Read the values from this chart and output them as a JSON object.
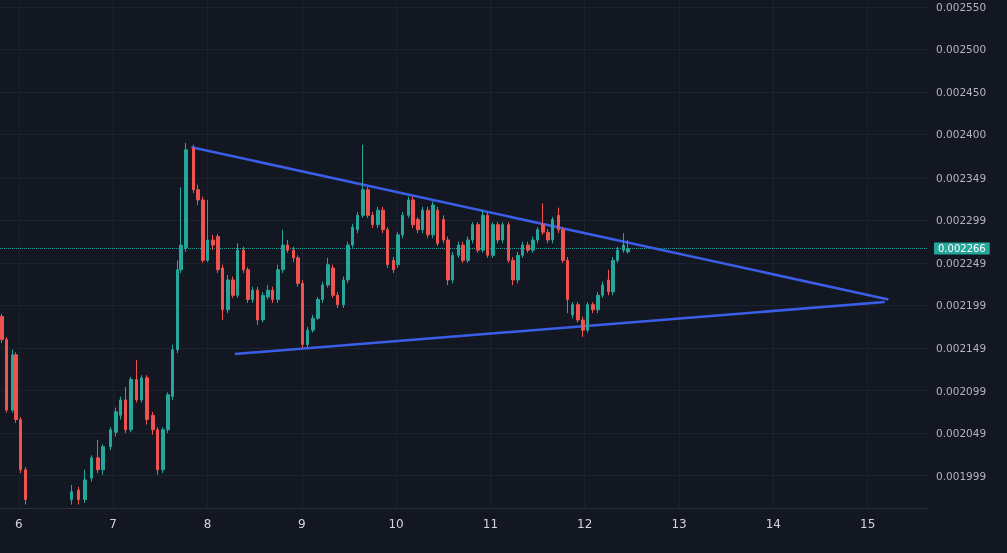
{
  "chart_data": {
    "type": "candlestick",
    "x": [
      5.82,
      5.87,
      5.93,
      5.97,
      6.02,
      6.07,
      6.56,
      6.63,
      6.7,
      6.77,
      6.84,
      6.89,
      6.97,
      7.03,
      7.08,
      7.13,
      7.19,
      7.25,
      7.3,
      7.36,
      7.42,
      7.47,
      7.53,
      7.58,
      7.63,
      7.68,
      7.72,
      7.77,
      7.85,
      7.9,
      7.95,
      8.0,
      8.06,
      8.11,
      8.16,
      8.22,
      8.27,
      8.32,
      8.38,
      8.43,
      8.48,
      8.53,
      8.59,
      8.64,
      8.69,
      8.75,
      8.8,
      8.85,
      8.91,
      8.96,
      9.01,
      9.06,
      9.12,
      9.17,
      9.22,
      9.28,
      9.33,
      9.38,
      9.44,
      9.49,
      9.54,
      9.59,
      9.65,
      9.7,
      9.75,
      9.81,
      9.86,
      9.91,
      9.97,
      10.02,
      10.07,
      10.13,
      10.18,
      10.23,
      10.28,
      10.34,
      10.39,
      10.44,
      10.5,
      10.55,
      10.6,
      10.66,
      10.71,
      10.76,
      10.81,
      10.87,
      10.92,
      10.97,
      11.03,
      11.08,
      11.13,
      11.19,
      11.24,
      11.29,
      11.34,
      11.4,
      11.45,
      11.5,
      11.56,
      11.61,
      11.66,
      11.72,
      11.77,
      11.82,
      11.87,
      11.93,
      11.98,
      12.03,
      12.09,
      12.14,
      12.19,
      12.25,
      12.3,
      12.35,
      12.41,
      12.46
    ],
    "ohlc": [
      [
        0.002186,
        0.002189,
        0.002155,
        0.002159
      ],
      [
        0.002159,
        0.002162,
        0.002073,
        0.002076
      ],
      [
        0.002076,
        0.002147,
        0.002073,
        0.002141
      ],
      [
        0.002141,
        0.002144,
        0.002061,
        0.002065
      ],
      [
        0.002065,
        0.002068,
        0.002002,
        0.002006
      ],
      [
        0.002006,
        0.002009,
        0.001965,
        0.001971
      ],
      [
        0.001971,
        0.001988,
        0.001965,
        0.00198
      ],
      [
        0.001982,
        0.001986,
        0.001965,
        0.001971
      ],
      [
        0.001971,
        0.002006,
        0.001967,
        0.001994
      ],
      [
        0.001996,
        0.002023,
        0.001992,
        0.00202
      ],
      [
        0.00202,
        0.002041,
        0.002002,
        0.002006
      ],
      [
        0.002006,
        0.002036,
        0.002,
        0.002033
      ],
      [
        0.002033,
        0.002056,
        0.002029,
        0.002053
      ],
      [
        0.00205,
        0.002079,
        0.002045,
        0.002074
      ],
      [
        0.00207,
        0.002092,
        0.002065,
        0.002088
      ],
      [
        0.002088,
        0.002103,
        0.002049,
        0.002053
      ],
      [
        0.002053,
        0.002115,
        0.00205,
        0.002112
      ],
      [
        0.002112,
        0.002135,
        0.002085,
        0.002088
      ],
      [
        0.002088,
        0.002117,
        0.002085,
        0.002114
      ],
      [
        0.002114,
        0.002117,
        0.002059,
        0.002065
      ],
      [
        0.00207,
        0.002074,
        0.002047,
        0.002053
      ],
      [
        0.002053,
        0.002056,
        0.002,
        0.002006
      ],
      [
        0.002006,
        0.002056,
        0.002002,
        0.002053
      ],
      [
        0.002053,
        0.002097,
        0.002049,
        0.002094
      ],
      [
        0.002092,
        0.002153,
        0.002088,
        0.002147
      ],
      [
        0.002147,
        0.002252,
        0.002143,
        0.002241
      ],
      [
        0.002241,
        0.002338,
        0.002237,
        0.00227
      ],
      [
        0.002267,
        0.00239,
        0.002262,
        0.002382
      ],
      [
        0.002384,
        0.002388,
        0.002331,
        0.002335
      ],
      [
        0.002335,
        0.002341,
        0.002317,
        0.002323
      ],
      [
        0.002323,
        0.002327,
        0.002249,
        0.002252
      ],
      [
        0.002252,
        0.002323,
        0.00225,
        0.002276
      ],
      [
        0.002276,
        0.002282,
        0.002264,
        0.00227
      ],
      [
        0.00228,
        0.002283,
        0.002237,
        0.002241
      ],
      [
        0.002243,
        0.002247,
        0.002182,
        0.002194
      ],
      [
        0.002194,
        0.002235,
        0.00219,
        0.002229
      ],
      [
        0.002229,
        0.002233,
        0.002208,
        0.002211
      ],
      [
        0.002211,
        0.002272,
        0.002208,
        0.002264
      ],
      [
        0.002264,
        0.002268,
        0.002237,
        0.002241
      ],
      [
        0.002241,
        0.002244,
        0.002202,
        0.002206
      ],
      [
        0.002206,
        0.002221,
        0.002202,
        0.002217
      ],
      [
        0.002217,
        0.002221,
        0.002176,
        0.002182
      ],
      [
        0.002182,
        0.002215,
        0.002179,
        0.002211
      ],
      [
        0.002209,
        0.002223,
        0.002206,
        0.002217
      ],
      [
        0.002217,
        0.002221,
        0.002202,
        0.002206
      ],
      [
        0.002206,
        0.002247,
        0.002202,
        0.002241
      ],
      [
        0.002241,
        0.002288,
        0.002237,
        0.00227
      ],
      [
        0.00227,
        0.002276,
        0.002261,
        0.002264
      ],
      [
        0.002264,
        0.002268,
        0.00225,
        0.002255
      ],
      [
        0.002255,
        0.002258,
        0.002221,
        0.002225
      ],
      [
        0.002225,
        0.002229,
        0.002149,
        0.002153
      ],
      [
        0.002153,
        0.002174,
        0.002149,
        0.00217
      ],
      [
        0.00217,
        0.002188,
        0.002167,
        0.002184
      ],
      [
        0.002184,
        0.002209,
        0.002182,
        0.002206
      ],
      [
        0.002206,
        0.002227,
        0.002202,
        0.002223
      ],
      [
        0.002223,
        0.002255,
        0.00222,
        0.002247
      ],
      [
        0.002243,
        0.002247,
        0.002208,
        0.002211
      ],
      [
        0.002211,
        0.002215,
        0.002196,
        0.0022
      ],
      [
        0.0022,
        0.002233,
        0.002196,
        0.002229
      ],
      [
        0.002229,
        0.002274,
        0.002225,
        0.00227
      ],
      [
        0.00227,
        0.002295,
        0.002267,
        0.002291
      ],
      [
        0.002288,
        0.002309,
        0.002284,
        0.002305
      ],
      [
        0.002305,
        0.002388,
        0.002302,
        0.002335
      ],
      [
        0.002335,
        0.002338,
        0.002302,
        0.002305
      ],
      [
        0.002305,
        0.002309,
        0.00229,
        0.002294
      ],
      [
        0.002294,
        0.002315,
        0.00229,
        0.002311
      ],
      [
        0.002311,
        0.002315,
        0.002284,
        0.002288
      ],
      [
        0.002288,
        0.002291,
        0.002243,
        0.002247
      ],
      [
        0.002252,
        0.002256,
        0.002237,
        0.002241
      ],
      [
        0.002247,
        0.002285,
        0.002243,
        0.002282
      ],
      [
        0.002282,
        0.002309,
        0.002278,
        0.002305
      ],
      [
        0.002305,
        0.002327,
        0.002302,
        0.002323
      ],
      [
        0.002323,
        0.002327,
        0.00229,
        0.002294
      ],
      [
        0.0023,
        0.002303,
        0.002284,
        0.002288
      ],
      [
        0.002288,
        0.002315,
        0.002284,
        0.002311
      ],
      [
        0.002311,
        0.002315,
        0.002278,
        0.002282
      ],
      [
        0.002282,
        0.002321,
        0.002278,
        0.002317
      ],
      [
        0.002311,
        0.002315,
        0.002269,
        0.002272
      ],
      [
        0.0023,
        0.002305,
        0.002272,
        0.002276
      ],
      [
        0.002276,
        0.00228,
        0.002223,
        0.002229
      ],
      [
        0.002229,
        0.002262,
        0.002225,
        0.002258
      ],
      [
        0.002258,
        0.002274,
        0.002255,
        0.00227
      ],
      [
        0.00227,
        0.002274,
        0.002249,
        0.002252
      ],
      [
        0.002252,
        0.00228,
        0.002249,
        0.002276
      ],
      [
        0.002276,
        0.002297,
        0.002272,
        0.002294
      ],
      [
        0.002294,
        0.002297,
        0.002261,
        0.002264
      ],
      [
        0.002264,
        0.002311,
        0.002261,
        0.002305
      ],
      [
        0.002305,
        0.002309,
        0.002255,
        0.002258
      ],
      [
        0.002258,
        0.002297,
        0.002255,
        0.002294
      ],
      [
        0.002294,
        0.002297,
        0.002272,
        0.002276
      ],
      [
        0.002276,
        0.002297,
        0.002272,
        0.002294
      ],
      [
        0.002294,
        0.002297,
        0.002249,
        0.002252
      ],
      [
        0.002252,
        0.002256,
        0.002223,
        0.002229
      ],
      [
        0.002229,
        0.002262,
        0.002225,
        0.002258
      ],
      [
        0.002258,
        0.002274,
        0.002255,
        0.00227
      ],
      [
        0.00227,
        0.002274,
        0.002261,
        0.002264
      ],
      [
        0.002264,
        0.00228,
        0.002261,
        0.002276
      ],
      [
        0.002276,
        0.002291,
        0.002272,
        0.002288
      ],
      [
        0.002294,
        0.002319,
        0.002282,
        0.002285
      ],
      [
        0.002285,
        0.002289,
        0.002272,
        0.002276
      ],
      [
        0.002276,
        0.002303,
        0.002272,
        0.0023
      ],
      [
        0.002305,
        0.002314,
        0.002284,
        0.002288
      ],
      [
        0.002288,
        0.002291,
        0.002249,
        0.002252
      ],
      [
        0.002252,
        0.002256,
        0.00219,
        0.002206
      ],
      [
        0.002188,
        0.002203,
        0.002184,
        0.0022
      ],
      [
        0.0022,
        0.002203,
        0.002179,
        0.002182
      ],
      [
        0.002182,
        0.002186,
        0.002162,
        0.00217
      ],
      [
        0.00217,
        0.002203,
        0.002167,
        0.0022
      ],
      [
        0.0022,
        0.002203,
        0.00219,
        0.002194
      ],
      [
        0.002194,
        0.002215,
        0.00219,
        0.002211
      ],
      [
        0.002211,
        0.002227,
        0.002208,
        0.002223
      ],
      [
        0.002229,
        0.002241,
        0.002211,
        0.002215
      ],
      [
        0.002215,
        0.002256,
        0.002211,
        0.002252
      ],
      [
        0.002252,
        0.002268,
        0.002249,
        0.002264
      ],
      [
        0.002264,
        0.002284,
        0.002261,
        0.00227
      ],
      [
        0.002262,
        0.002276,
        0.00226,
        0.002266
      ]
    ],
    "colors": [
      "#ef5350",
      "#ef5350",
      "#26a69a",
      "#ef5350",
      "#ef5350",
      "#ef5350",
      "#26a69a",
      "#ef5350",
      "#26a69a",
      "#26a69a",
      "#ef5350",
      "#26a69a",
      "#26a69a",
      "#26a69a",
      "#26a69a",
      "#ef5350",
      "#26a69a",
      "#ef5350",
      "#26a69a",
      "#ef5350",
      "#ef5350",
      "#ef5350",
      "#26a69a",
      "#26a69a",
      "#26a69a",
      "#26a69a",
      "#26a69a",
      "#26a69a",
      "#ef5350",
      "#ef5350",
      "#ef5350",
      "#26a69a",
      "#ef5350",
      "#ef5350",
      "#ef5350",
      "#26a69a",
      "#ef5350",
      "#26a69a",
      "#ef5350",
      "#ef5350",
      "#26a69a",
      "#ef5350",
      "#26a69a",
      "#26a69a",
      "#ef5350",
      "#26a69a",
      "#26a69a",
      "#ef5350",
      "#ef5350",
      "#ef5350",
      "#ef5350",
      "#26a69a",
      "#26a69a",
      "#26a69a",
      "#26a69a",
      "#26a69a",
      "#ef5350",
      "#ef5350",
      "#26a69a",
      "#26a69a",
      "#26a69a",
      "#26a69a",
      "#26a69a",
      "#ef5350",
      "#ef5350",
      "#26a69a",
      "#ef5350",
      "#ef5350",
      "#ef5350",
      "#26a69a",
      "#26a69a",
      "#26a69a",
      "#ef5350",
      "#ef5350",
      "#26a69a",
      "#ef5350",
      "#26a69a",
      "#ef5350",
      "#ef5350",
      "#ef5350",
      "#26a69a",
      "#26a69a",
      "#ef5350",
      "#26a69a",
      "#26a69a",
      "#ef5350",
      "#26a69a",
      "#ef5350",
      "#26a69a",
      "#ef5350",
      "#26a69a",
      "#ef5350",
      "#ef5350",
      "#26a69a",
      "#26a69a",
      "#ef5350",
      "#26a69a",
      "#26a69a",
      "#ef5350",
      "#ef5350",
      "#26a69a",
      "#ef5350",
      "#ef5350",
      "#ef5350",
      "#26a69a",
      "#ef5350",
      "#ef5350",
      "#26a69a",
      "#ef5350",
      "#26a69a",
      "#26a69a",
      "#ef5350",
      "#26a69a",
      "#26a69a",
      "#26a69a",
      "#26a69a"
    ],
    "series": [
      {
        "type": "line",
        "x": [
          7.83,
          15.22
        ],
        "values": [
          0.002385,
          0.002206
        ],
        "color": "#3b5ee8"
      },
      {
        "type": "line",
        "x": [
          8.29,
          15.18
        ],
        "values": [
          0.002142,
          0.002203
        ],
        "color": "#3b5ee8"
      }
    ],
    "xlim": [
      5.8,
      15.64
    ],
    "ylim": [
      0.001961,
      0.002558
    ],
    "xticks": [
      6,
      7,
      8,
      9,
      10,
      11,
      12,
      13,
      14,
      15
    ],
    "yticks": [
      0.001999,
      0.002049,
      0.002099,
      0.002149,
      0.002199,
      0.002249,
      0.002299,
      0.002349,
      {
        "value": 0.0024,
        "label": "0.002400"
      },
      {
        "value": 0.00245,
        "label": "0.002450"
      },
      {
        "value": 0.0025,
        "label": "0.002500"
      },
      {
        "value": 0.00255,
        "label": "0.002550"
      }
    ],
    "ref_lines": [
      {
        "axis": "y",
        "value": 0.002266,
        "label": "0.002266",
        "color": "#26a69a",
        "line_style": "dotted"
      }
    ],
    "grid": true
  }
}
